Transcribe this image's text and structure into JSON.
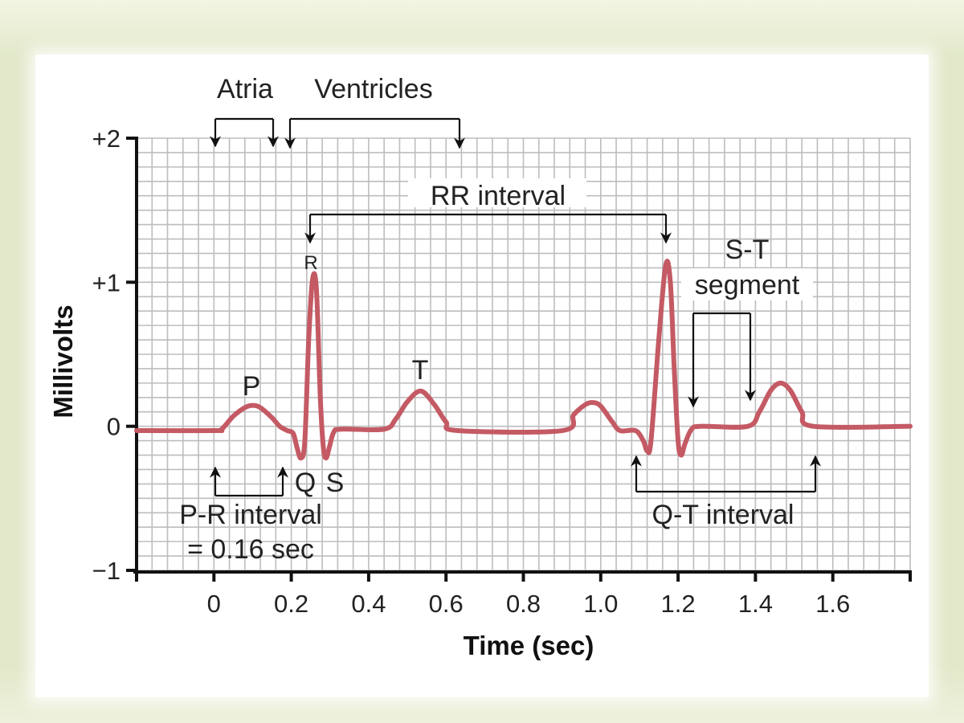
{
  "chart_data": {
    "type": "line",
    "xlabel": "Time (sec)",
    "ylabel": "Millivolts",
    "xlim": [
      -0.2,
      1.8
    ],
    "ylim": [
      -1,
      2
    ],
    "grid": true,
    "x_ticks": [
      0,
      0.2,
      0.4,
      0.6,
      0.8,
      1.0,
      1.2,
      1.4,
      1.6
    ],
    "x_tick_labels": [
      "0",
      "0.2",
      "0.4",
      "0.6",
      "0.8",
      "1.0",
      "1.2",
      "1.4",
      "1.6"
    ],
    "y_ticks": [
      2,
      1,
      0,
      -1
    ],
    "y_tick_labels": [
      "+2",
      "+1",
      "0",
      "−1"
    ],
    "line_color": "#c45a64",
    "series": [
      {
        "x": [
          -0.2,
          0.0,
          0.02,
          0.05,
          0.08,
          0.1,
          0.12,
          0.15,
          0.17,
          0.19,
          0.205,
          0.215,
          0.225,
          0.235,
          0.245,
          0.255,
          0.265,
          0.275,
          0.283,
          0.29,
          0.298,
          0.31,
          0.33,
          0.44,
          0.47,
          0.5,
          0.535,
          0.57,
          0.6,
          0.63,
          0.9,
          0.93,
          0.96,
          0.98,
          1.0,
          1.03,
          1.05,
          1.09,
          1.11,
          1.12,
          1.13,
          1.15,
          1.168,
          1.18,
          1.19,
          1.2,
          1.208,
          1.218,
          1.235,
          1.26,
          1.38,
          1.41,
          1.44,
          1.465,
          1.49,
          1.52,
          1.55,
          1.8
        ],
        "y": [
          -0.03,
          -0.03,
          -0.02,
          0.07,
          0.13,
          0.145,
          0.13,
          0.06,
          0.0,
          -0.03,
          -0.05,
          -0.15,
          -0.22,
          -0.1,
          0.6,
          1.02,
          0.95,
          0.2,
          -0.15,
          -0.22,
          -0.15,
          -0.04,
          -0.02,
          -0.02,
          0.05,
          0.17,
          0.245,
          0.15,
          0.03,
          -0.03,
          -0.03,
          0.08,
          0.15,
          0.165,
          0.14,
          0.03,
          -0.03,
          -0.03,
          -0.1,
          -0.17,
          -0.1,
          0.6,
          1.12,
          1.0,
          0.4,
          -0.1,
          -0.2,
          -0.12,
          -0.02,
          0.0,
          0.0,
          0.1,
          0.25,
          0.3,
          0.25,
          0.1,
          0.0,
          0.0
        ]
      }
    ],
    "annotations": {
      "atria": "Atria",
      "ventricles": "Ventricles",
      "rr_interval": "RR interval",
      "st_line1": "S-T",
      "st_line2": "segment",
      "pr_line1": "P-R interval",
      "pr_line2": "= 0.16 sec",
      "qt_interval": "Q-T interval",
      "p": "P",
      "q": "Q",
      "r": "R",
      "s": "S",
      "t": "T"
    }
  }
}
